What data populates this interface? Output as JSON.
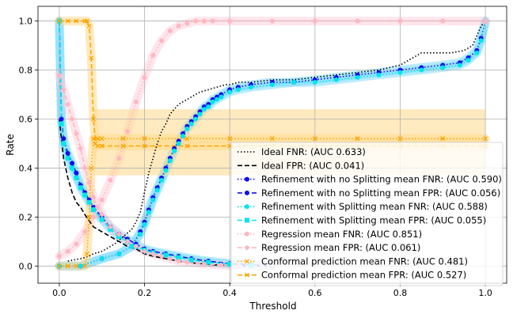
{
  "chart_data": {
    "type": "line",
    "title": "",
    "xlabel": "Threshold",
    "ylabel": "Rate",
    "xlim": [
      -0.05,
      1.05
    ],
    "ylim": [
      -0.07,
      1.06
    ],
    "xticks": [
      0.0,
      0.2,
      0.4,
      0.6,
      0.8,
      1.0
    ],
    "xtick_labels": [
      "0.0",
      "0.2",
      "0.4",
      "0.6",
      "0.8",
      "1.0"
    ],
    "yticks": [
      0.0,
      0.2,
      0.4,
      0.6,
      0.8,
      1.0
    ],
    "ytick_labels": [
      "0.0",
      "0.2",
      "0.4",
      "0.6",
      "0.8",
      "1.0"
    ],
    "grid": true,
    "legend_position": "lower-right",
    "series": [
      {
        "name": "Ideal FNR: (AUC 0.633)",
        "color": "#000000",
        "line": "dotted",
        "marker": "none",
        "x": [
          0.02,
          0.05,
          0.07,
          0.08,
          0.1,
          0.11,
          0.13,
          0.15,
          0.17,
          0.18,
          0.19,
          0.2,
          0.21,
          0.22,
          0.23,
          0.24,
          0.25,
          0.26,
          0.27,
          0.28,
          0.29,
          0.3,
          0.31,
          0.32,
          0.33,
          0.35,
          0.37,
          0.39,
          0.4,
          0.42,
          0.45,
          0.5,
          0.55,
          0.6,
          0.65,
          0.7,
          0.75,
          0.8,
          0.83,
          0.85,
          0.88,
          0.92,
          0.95,
          0.97,
          0.99,
          1.0
        ],
        "y": [
          0.02,
          0.03,
          0.04,
          0.05,
          0.06,
          0.07,
          0.09,
          0.12,
          0.15,
          0.18,
          0.22,
          0.3,
          0.38,
          0.44,
          0.5,
          0.55,
          0.58,
          0.62,
          0.64,
          0.66,
          0.67,
          0.68,
          0.69,
          0.7,
          0.71,
          0.72,
          0.73,
          0.74,
          0.74,
          0.75,
          0.75,
          0.76,
          0.76,
          0.77,
          0.78,
          0.79,
          0.8,
          0.82,
          0.85,
          0.87,
          0.87,
          0.87,
          0.88,
          0.9,
          0.98,
          1.0
        ]
      },
      {
        "name": "Ideal FPR: (AUC 0.041)",
        "color": "#000000",
        "line": "dashed",
        "marker": "none",
        "x": [
          0.0,
          0.005,
          0.01,
          0.02,
          0.03,
          0.04,
          0.05,
          0.06,
          0.08,
          0.1,
          0.12,
          0.14,
          0.16,
          0.18,
          0.2,
          0.22,
          0.25,
          0.28,
          0.3,
          0.33,
          0.36,
          0.4,
          0.45,
          0.5
        ],
        "y": [
          0.6,
          0.52,
          0.44,
          0.36,
          0.3,
          0.26,
          0.24,
          0.21,
          0.16,
          0.14,
          0.12,
          0.1,
          0.08,
          0.07,
          0.05,
          0.04,
          0.03,
          0.02,
          0.015,
          0.01,
          0.005,
          0.003,
          0.001,
          0.0
        ]
      },
      {
        "name": "Refinement with no Splitting mean FNR: (AUC 0.590)",
        "color": "#1010ee",
        "line": "dotted",
        "marker": "circle",
        "band": "#7fdcff",
        "x": [
          0.0,
          0.05,
          0.1,
          0.14,
          0.17,
          0.19,
          0.2,
          0.21,
          0.22,
          0.23,
          0.24,
          0.25,
          0.26,
          0.27,
          0.28,
          0.29,
          0.3,
          0.31,
          0.32,
          0.33,
          0.34,
          0.35,
          0.36,
          0.37,
          0.38,
          0.4,
          0.42,
          0.45,
          0.5,
          0.55,
          0.6,
          0.65,
          0.7,
          0.75,
          0.8,
          0.85,
          0.9,
          0.94,
          0.96,
          0.98,
          0.99,
          1.0
        ],
        "y": [
          0.0,
          0.0,
          0.03,
          0.05,
          0.08,
          0.14,
          0.18,
          0.23,
          0.28,
          0.32,
          0.36,
          0.4,
          0.44,
          0.48,
          0.51,
          0.54,
          0.57,
          0.59,
          0.61,
          0.63,
          0.65,
          0.66,
          0.68,
          0.69,
          0.7,
          0.72,
          0.73,
          0.74,
          0.75,
          0.75,
          0.76,
          0.77,
          0.78,
          0.79,
          0.8,
          0.81,
          0.82,
          0.83,
          0.85,
          0.88,
          0.93,
          1.0
        ]
      },
      {
        "name": "Refinement with no Splitting mean FPR: (AUC 0.056)",
        "color": "#1010ee",
        "line": "dashed",
        "marker": "circle",
        "band": "#7fdcff",
        "x": [
          0.0,
          0.005,
          0.01,
          0.02,
          0.03,
          0.04,
          0.05,
          0.06,
          0.07,
          0.08,
          0.1,
          0.12,
          0.14,
          0.16,
          0.18,
          0.2,
          0.22,
          0.25,
          0.28,
          0.31,
          0.35,
          0.4,
          0.45,
          0.5
        ],
        "y": [
          1.0,
          0.6,
          0.52,
          0.46,
          0.42,
          0.38,
          0.33,
          0.3,
          0.27,
          0.24,
          0.2,
          0.16,
          0.13,
          0.11,
          0.09,
          0.07,
          0.06,
          0.05,
          0.04,
          0.03,
          0.02,
          0.01,
          0.005,
          0.0
        ]
      },
      {
        "name": "Refinement with Splitting mean FNR: (AUC 0.588)",
        "color": "#00e5ee",
        "line": "dotted",
        "marker": "circle",
        "band": "#7fdcff",
        "x": [
          0.0,
          0.05,
          0.1,
          0.14,
          0.17,
          0.19,
          0.2,
          0.21,
          0.22,
          0.23,
          0.24,
          0.25,
          0.26,
          0.27,
          0.28,
          0.29,
          0.3,
          0.31,
          0.32,
          0.33,
          0.34,
          0.35,
          0.36,
          0.37,
          0.38,
          0.4,
          0.42,
          0.45,
          0.5,
          0.55,
          0.6,
          0.65,
          0.7,
          0.75,
          0.8,
          0.85,
          0.9,
          0.94,
          0.96,
          0.98,
          0.99,
          1.0
        ],
        "y": [
          0.0,
          0.0,
          0.03,
          0.05,
          0.08,
          0.13,
          0.17,
          0.22,
          0.27,
          0.31,
          0.35,
          0.39,
          0.43,
          0.47,
          0.5,
          0.53,
          0.56,
          0.58,
          0.6,
          0.62,
          0.64,
          0.65,
          0.67,
          0.68,
          0.69,
          0.71,
          0.72,
          0.73,
          0.74,
          0.75,
          0.75,
          0.76,
          0.77,
          0.78,
          0.79,
          0.8,
          0.81,
          0.82,
          0.84,
          0.87,
          0.92,
          1.0
        ]
      },
      {
        "name": "Refinement with Splitting mean FPR: (AUC 0.055)",
        "color": "#00e5ee",
        "line": "dashed",
        "marker": "square",
        "band": "#7fdcff",
        "x": [
          0.0,
          0.005,
          0.01,
          0.02,
          0.03,
          0.04,
          0.05,
          0.06,
          0.07,
          0.08,
          0.1,
          0.12,
          0.14,
          0.16,
          0.18,
          0.2,
          0.22,
          0.25,
          0.28,
          0.31,
          0.35,
          0.4,
          0.45,
          0.5
        ],
        "y": [
          1.0,
          0.58,
          0.5,
          0.44,
          0.4,
          0.36,
          0.32,
          0.29,
          0.26,
          0.23,
          0.19,
          0.15,
          0.12,
          0.1,
          0.08,
          0.065,
          0.055,
          0.045,
          0.035,
          0.025,
          0.015,
          0.008,
          0.003,
          0.0
        ]
      },
      {
        "name": "Regression mean FNR: (AUC 0.851)",
        "color": "#ffb6c1",
        "line": "dotted",
        "marker": "circle",
        "band": "#ffd2dc",
        "x": [
          0.0,
          0.02,
          0.04,
          0.06,
          0.08,
          0.1,
          0.12,
          0.14,
          0.16,
          0.18,
          0.2,
          0.22,
          0.24,
          0.26,
          0.28,
          0.3,
          0.32,
          0.34,
          0.36,
          0.4,
          0.5,
          0.6,
          0.7,
          0.8,
          0.9,
          1.0
        ],
        "y": [
          0.04,
          0.06,
          0.09,
          0.14,
          0.2,
          0.27,
          0.35,
          0.44,
          0.55,
          0.67,
          0.77,
          0.86,
          0.92,
          0.96,
          0.98,
          0.99,
          1.0,
          1.0,
          1.0,
          1.0,
          1.0,
          1.0,
          1.0,
          1.0,
          1.0,
          1.0
        ]
      },
      {
        "name": "Regression mean FPR: (AUC 0.061)",
        "color": "#ffb6c1",
        "line": "dashed",
        "marker": "diamond",
        "band": "#ffd2dc",
        "x": [
          0.0,
          0.01,
          0.02,
          0.03,
          0.04,
          0.05,
          0.06,
          0.07,
          0.08,
          0.09,
          0.1,
          0.12,
          0.14,
          0.16,
          0.18,
          0.2,
          0.22,
          0.24,
          0.26,
          0.28,
          0.3,
          0.34,
          0.38,
          0.42,
          0.5
        ],
        "y": [
          0.78,
          0.72,
          0.66,
          0.6,
          0.54,
          0.48,
          0.4,
          0.34,
          0.28,
          0.24,
          0.21,
          0.16,
          0.13,
          0.1,
          0.08,
          0.06,
          0.05,
          0.04,
          0.03,
          0.02,
          0.015,
          0.008,
          0.004,
          0.002,
          0.0
        ]
      },
      {
        "name": "Conformal prediction mean FNR: (AUC 0.481)",
        "color": "#ffa500",
        "line": "dotted",
        "marker": "x",
        "band": "#ffd98a",
        "x": [
          0.0,
          0.02,
          0.04,
          0.06,
          0.065,
          0.07,
          0.075,
          0.08,
          0.09,
          0.1,
          0.15,
          0.2,
          0.3,
          0.4,
          0.5,
          0.6,
          0.7,
          0.8,
          0.9,
          1.0
        ],
        "y": [
          0.0,
          0.0,
          0.0,
          0.0,
          0.05,
          0.2,
          0.4,
          0.52,
          0.52,
          0.52,
          0.52,
          0.52,
          0.52,
          0.52,
          0.52,
          0.52,
          0.52,
          0.52,
          0.52,
          0.52
        ]
      },
      {
        "name": "Conformal prediction mean FPR: (AUC 0.527)",
        "color": "#ffa500",
        "line": "dashed",
        "marker": "x",
        "band": "#ffd98a",
        "x": [
          0.0,
          0.02,
          0.04,
          0.06,
          0.065,
          0.07,
          0.075,
          0.08,
          0.085,
          0.09,
          0.1,
          0.15,
          0.2,
          0.3,
          0.4,
          0.5,
          0.6,
          0.7,
          0.8,
          0.9,
          1.0
        ],
        "y": [
          1.0,
          1.0,
          1.0,
          1.0,
          1.0,
          0.98,
          0.85,
          0.6,
          0.5,
          0.49,
          0.49,
          0.49,
          0.49,
          0.49,
          0.49,
          0.49,
          0.49,
          0.49,
          0.49,
          0.49,
          0.49
        ]
      }
    ]
  }
}
